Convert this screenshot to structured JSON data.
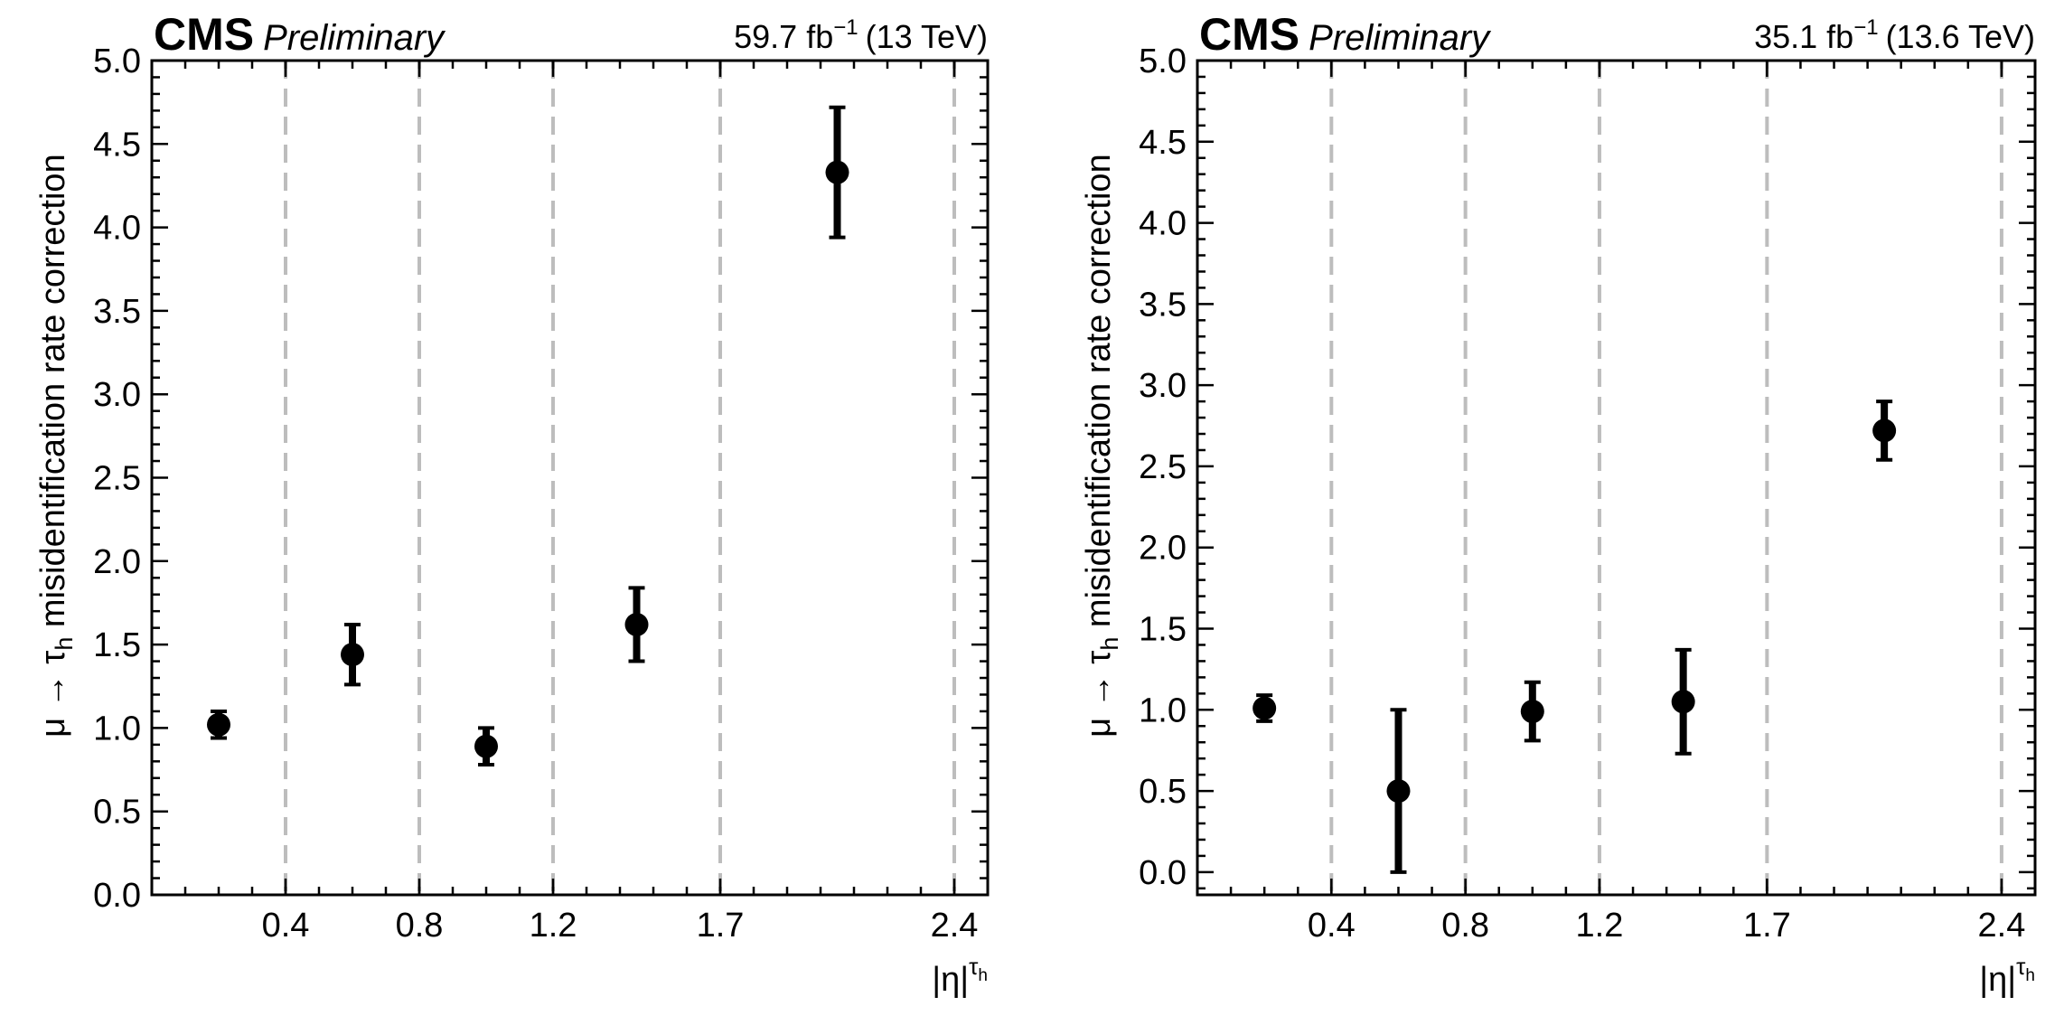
{
  "chart_data": [
    {
      "type": "scatter",
      "experiment": "CMS",
      "status": "Preliminary",
      "lumi_value": "59.7 fb",
      "lumi_exp": "−1",
      "energy": "(13 TeV)",
      "ylabel_mu": "μ → τ",
      "ylabel_sub": "h",
      "ylabel_rest": " misidentification rate correction",
      "xlabel_main": "|η|",
      "xlabel_sup": "τ",
      "xlabel_supsub": "h",
      "ylim": [
        0.0,
        5.0
      ],
      "xlim": [
        0.0,
        2.5
      ],
      "yticks": [
        "0.0",
        "0.5",
        "1.0",
        "1.5",
        "2.0",
        "2.5",
        "3.0",
        "3.5",
        "4.0",
        "4.5",
        "5.0"
      ],
      "xticks": [
        "0.4",
        "0.8",
        "1.2",
        "1.7",
        "2.4"
      ],
      "bin_edges": [
        0.4,
        0.8,
        1.2,
        1.7,
        2.4
      ],
      "x": [
        0.2,
        0.6,
        1.0,
        1.45,
        2.05
      ],
      "y": [
        1.02,
        1.44,
        0.89,
        1.62,
        4.33
      ],
      "yerr": [
        0.08,
        0.18,
        0.11,
        0.22,
        0.39
      ]
    },
    {
      "type": "scatter",
      "experiment": "CMS",
      "status": "Preliminary",
      "lumi_value": "35.1 fb",
      "lumi_exp": "−1",
      "energy": "(13.6 TeV)",
      "ylabel_mu": "μ → τ",
      "ylabel_sub": "h",
      "ylabel_rest": " misidentification rate correction",
      "xlabel_main": "|η|",
      "xlabel_sup": "τ",
      "xlabel_supsub": "h",
      "ylim": [
        -0.14,
        5.0
      ],
      "xlim": [
        0.0,
        2.5
      ],
      "yticks": [
        "0.0",
        "0.5",
        "1.0",
        "1.5",
        "2.0",
        "2.5",
        "3.0",
        "3.5",
        "4.0",
        "4.5",
        "5.0"
      ],
      "xticks": [
        "0.4",
        "0.8",
        "1.2",
        "1.7",
        "2.4"
      ],
      "bin_edges": [
        0.4,
        0.8,
        1.2,
        1.7,
        2.4
      ],
      "x": [
        0.2,
        0.6,
        1.0,
        1.45,
        2.05
      ],
      "y": [
        1.01,
        0.5,
        0.99,
        1.05,
        2.72
      ],
      "yerr": [
        0.08,
        0.5,
        0.18,
        0.32,
        0.18
      ]
    }
  ],
  "colors": {
    "marker": "#000000",
    "bin_line": "#bdbdbd",
    "axis": "#000000"
  }
}
